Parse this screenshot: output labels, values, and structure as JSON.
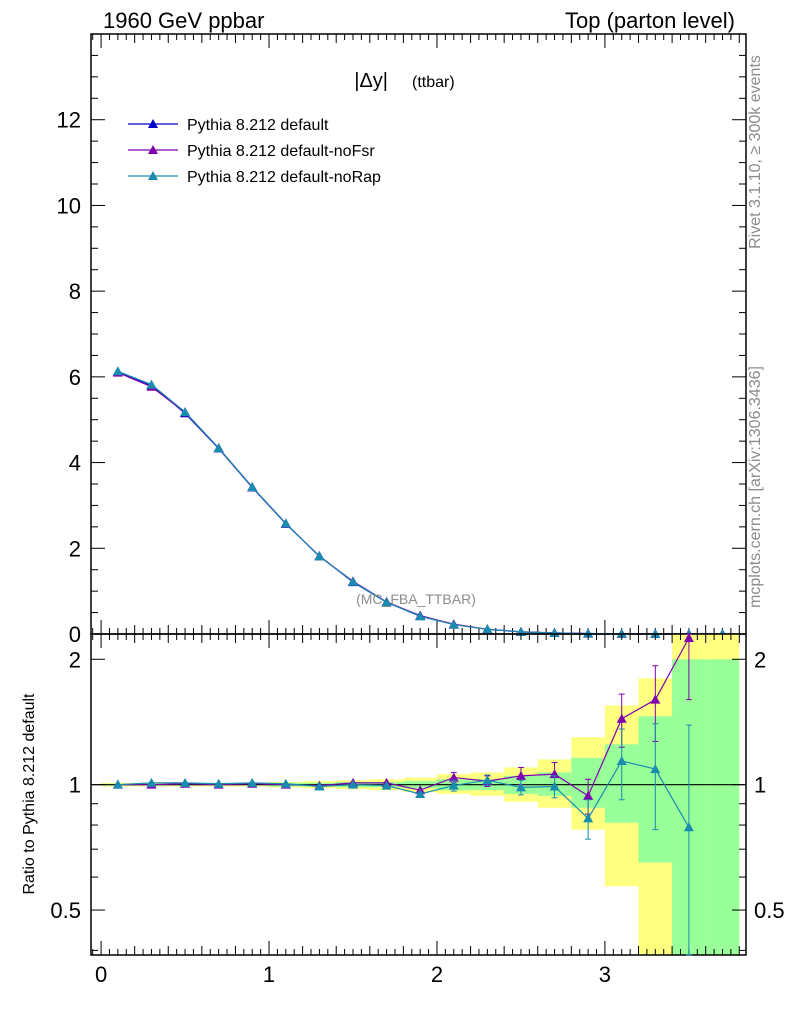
{
  "header": {
    "left": "1960 GeV ppbar",
    "right": "Top (parton level)"
  },
  "side_texts": {
    "rivet": "Rivet 3.1.10, ≥ 300k events",
    "mcplots": "mcplots.cern.ch [arXiv:1306.3436]"
  },
  "chart_data": [
    {
      "type": "line",
      "title_main": "|Δy|",
      "title_sub": "(ttbar)",
      "watermark": "(MC_FBA_TTBAR)",
      "xlim": [
        -0.06,
        3.84
      ],
      "ylim": [
        0,
        14
      ],
      "x_ticks": [
        0,
        1,
        2,
        3
      ],
      "y_ticks": [
        0,
        2,
        4,
        6,
        8,
        10,
        12
      ],
      "x_tick_labels": [
        "0",
        "1",
        "2",
        "3"
      ],
      "y_tick_labels": [
        "0",
        "2",
        "4",
        "6",
        "8",
        "10",
        "12"
      ],
      "x": [
        0.1,
        0.3,
        0.5,
        0.7,
        0.9,
        1.1,
        1.3,
        1.5,
        1.7,
        1.9,
        2.1,
        2.3,
        2.5,
        2.7,
        2.9,
        3.1,
        3.3,
        3.5,
        3.7
      ],
      "series": [
        {
          "name": "Pythia 8.212 default",
          "color": "#0000cc",
          "values": [
            6.12,
            5.8,
            5.15,
            4.33,
            3.42,
            2.57,
            1.82,
            1.21,
            0.74,
            0.43,
            0.22,
            0.11,
            0.05,
            0.025,
            0.011,
            0.005,
            0.002,
            0.0008,
            0.0003
          ]
        },
        {
          "name": "Pythia 8.212 default-noFsr",
          "color": "#8000b0",
          "values": [
            6.1,
            5.77,
            5.17,
            4.34,
            3.43,
            2.58,
            1.81,
            1.23,
            0.75,
            0.42,
            0.23,
            0.11,
            0.05,
            0.026,
            0.01,
            0.007,
            0.003,
            0.0018,
            0.0003
          ]
        },
        {
          "name": "Pythia 8.212 default-noRap",
          "color": "#1a8caf",
          "values": [
            6.13,
            5.82,
            5.18,
            4.34,
            3.43,
            2.58,
            1.81,
            1.22,
            0.74,
            0.41,
            0.22,
            0.11,
            0.05,
            0.025,
            0.009,
            0.006,
            0.002,
            0.0006,
            0.0003
          ]
        }
      ],
      "legend_placement": "top-left"
    },
    {
      "type": "line",
      "ylabel": "Ratio to Pythia 8.212 default",
      "xlim": [
        -0.06,
        3.84
      ],
      "ylim": [
        0.39,
        2.3
      ],
      "y_scale": "log",
      "reference_line": 1,
      "x_ticks": [
        0,
        1,
        2,
        3
      ],
      "x_tick_labels": [
        "0",
        "1",
        "2",
        "3"
      ],
      "y_ticks": [
        0.5,
        1,
        2
      ],
      "y_tick_labels": [
        "0.5",
        "1",
        "2"
      ],
      "band_edges": [
        0,
        0.2,
        0.4,
        0.6,
        0.8,
        1.0,
        1.2,
        1.4,
        1.6,
        1.8,
        2.0,
        2.2,
        2.4,
        2.6,
        2.8,
        3.0,
        3.2,
        3.4,
        3.6,
        3.8
      ],
      "band_colors": {
        "outer": "#ffff80",
        "inner": "#99ff99"
      },
      "yellow_band": [
        [
          0.99,
          1.01
        ],
        [
          0.99,
          1.01
        ],
        [
          0.99,
          1.01
        ],
        [
          0.99,
          1.01
        ],
        [
          0.99,
          1.01
        ],
        [
          0.985,
          1.015
        ],
        [
          0.98,
          1.02
        ],
        [
          0.975,
          1.025
        ],
        [
          0.97,
          1.03
        ],
        [
          0.96,
          1.04
        ],
        [
          0.95,
          1.06
        ],
        [
          0.94,
          1.07
        ],
        [
          0.91,
          1.1
        ],
        [
          0.88,
          1.15
        ],
        [
          0.78,
          1.3
        ],
        [
          0.57,
          1.55
        ],
        [
          0.39,
          1.8
        ],
        [
          0.39,
          2.3
        ],
        [
          0.39,
          2.3
        ]
      ],
      "green_band": [
        [
          0.995,
          1.005
        ],
        [
          0.995,
          1.005
        ],
        [
          0.995,
          1.005
        ],
        [
          0.995,
          1.005
        ],
        [
          0.995,
          1.005
        ],
        [
          0.99,
          1.01
        ],
        [
          0.99,
          1.01
        ],
        [
          0.985,
          1.015
        ],
        [
          0.985,
          1.015
        ],
        [
          0.98,
          1.02
        ],
        [
          0.97,
          1.03
        ],
        [
          0.97,
          1.03
        ],
        [
          0.95,
          1.05
        ],
        [
          0.94,
          1.07
        ],
        [
          0.88,
          1.16
        ],
        [
          0.81,
          1.25
        ],
        [
          0.65,
          1.46
        ],
        [
          0.39,
          2.0
        ],
        [
          0.39,
          2.0
        ]
      ],
      "x": [
        0.1,
        0.3,
        0.5,
        0.7,
        0.9,
        1.1,
        1.3,
        1.5,
        1.7,
        1.9,
        2.1,
        2.3,
        2.5,
        2.7,
        2.9,
        3.1,
        3.3,
        3.5
      ],
      "series": [
        {
          "name": "Pythia 8.212 default-noFsr",
          "color": "#8000b0",
          "values": [
            1.0,
            1.0,
            1.005,
            1.0,
            1.005,
            1.0,
            0.995,
            1.01,
            1.01,
            0.97,
            1.04,
            1.02,
            1.05,
            1.06,
            0.94,
            1.44,
            1.6,
            2.25
          ],
          "errors": [
            0.005,
            0.005,
            0.005,
            0.005,
            0.005,
            0.005,
            0.01,
            0.01,
            0.01,
            0.02,
            0.03,
            0.03,
            0.05,
            0.07,
            0.09,
            0.21,
            0.33,
            0.65
          ]
        },
        {
          "name": "Pythia 8.212 default-noRap",
          "color": "#1a8caf",
          "values": [
            1.0,
            1.01,
            1.01,
            1.005,
            1.01,
            1.005,
            0.99,
            1.0,
            0.995,
            0.95,
            0.995,
            1.025,
            0.985,
            0.99,
            0.83,
            1.14,
            1.09,
            0.79
          ],
          "errors": [
            0.005,
            0.005,
            0.005,
            0.005,
            0.005,
            0.005,
            0.01,
            0.01,
            0.01,
            0.02,
            0.03,
            0.03,
            0.04,
            0.06,
            0.09,
            0.22,
            0.31,
            0.6
          ]
        }
      ]
    }
  ]
}
